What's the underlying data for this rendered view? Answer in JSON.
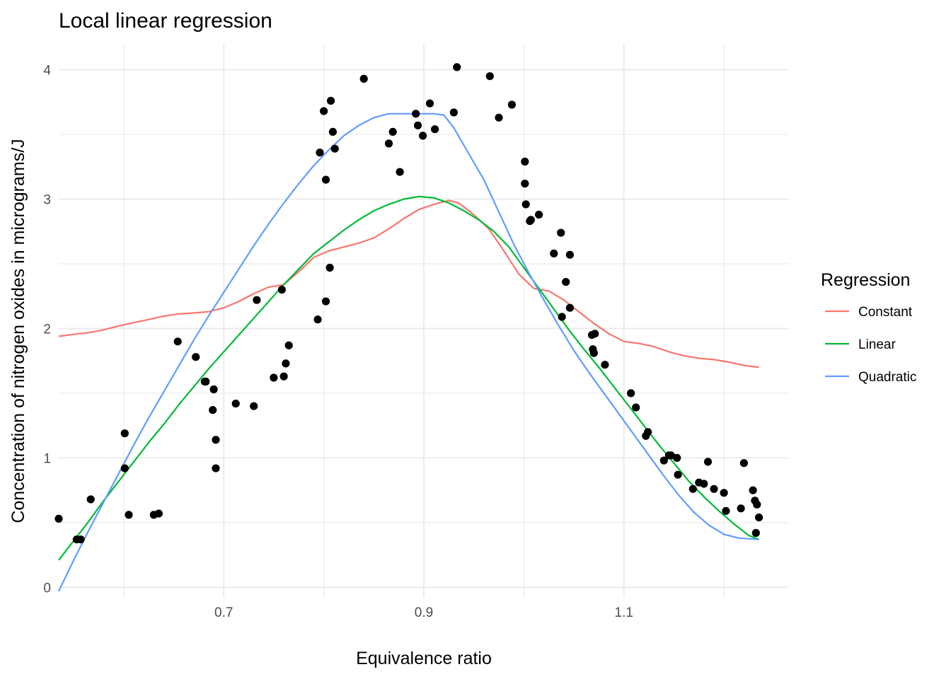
{
  "chart_data": {
    "type": "scatter",
    "title": "Local linear regression",
    "xlabel": "Equivalence ratio",
    "ylabel": "Concentration of nitrogen oxides in micrograms/J",
    "xlim": [
      0.535,
      1.265
    ],
    "ylim": [
      -0.08,
      4.2
    ],
    "x_ticks": [
      0.7,
      0.9,
      1.1
    ],
    "x_tick_labels": [
      "0.7",
      "0.9",
      "1.1"
    ],
    "x_minor_ticks": [
      0.6,
      0.8,
      1.0,
      1.2
    ],
    "y_ticks": [
      0,
      1,
      2,
      3,
      4
    ],
    "y_tick_labels": [
      "0",
      "1",
      "2",
      "3",
      "4"
    ],
    "y_minor_ticks": [
      0.5,
      1.5,
      2.5,
      3.5
    ],
    "grid": true,
    "legend": {
      "title": "Regression",
      "position": "right"
    },
    "points": [
      [
        0.535,
        0.53
      ],
      [
        0.553,
        0.37
      ],
      [
        0.557,
        0.37
      ],
      [
        0.567,
        0.68
      ],
      [
        0.601,
        1.19
      ],
      [
        0.601,
        0.92
      ],
      [
        0.605,
        0.56
      ],
      [
        0.63,
        0.56
      ],
      [
        0.635,
        0.57
      ],
      [
        0.654,
        1.9
      ],
      [
        0.672,
        1.78
      ],
      [
        0.681,
        1.59
      ],
      [
        0.682,
        1.59
      ],
      [
        0.689,
        1.37
      ],
      [
        0.69,
        1.53
      ],
      [
        0.692,
        1.14
      ],
      [
        0.692,
        0.92
      ],
      [
        0.712,
        1.42
      ],
      [
        0.73,
        1.4
      ],
      [
        0.733,
        2.22
      ],
      [
        0.75,
        1.62
      ],
      [
        0.758,
        2.3
      ],
      [
        0.76,
        1.63
      ],
      [
        0.762,
        1.73
      ],
      [
        0.765,
        1.87
      ],
      [
        0.794,
        2.07
      ],
      [
        0.796,
        3.36
      ],
      [
        0.8,
        3.68
      ],
      [
        0.802,
        2.21
      ],
      [
        0.802,
        3.15
      ],
      [
        0.806,
        2.47
      ],
      [
        0.807,
        3.76
      ],
      [
        0.809,
        3.52
      ],
      [
        0.811,
        3.39
      ],
      [
        0.84,
        3.93
      ],
      [
        0.865,
        3.43
      ],
      [
        0.869,
        3.52
      ],
      [
        0.876,
        3.21
      ],
      [
        0.892,
        3.66
      ],
      [
        0.894,
        3.57
      ],
      [
        0.899,
        3.49
      ],
      [
        0.906,
        3.74
      ],
      [
        0.911,
        3.54
      ],
      [
        0.93,
        3.67
      ],
      [
        0.933,
        4.02
      ],
      [
        0.966,
        3.95
      ],
      [
        0.975,
        3.63
      ],
      [
        0.988,
        3.73
      ],
      [
        1.001,
        3.29
      ],
      [
        1.001,
        3.12
      ],
      [
        1.002,
        2.96
      ],
      [
        1.006,
        2.83
      ],
      [
        1.007,
        2.84
      ],
      [
        1.015,
        2.88
      ],
      [
        1.03,
        2.58
      ],
      [
        1.037,
        2.74
      ],
      [
        1.038,
        2.09
      ],
      [
        1.042,
        2.36
      ],
      [
        1.046,
        2.57
      ],
      [
        1.046,
        2.16
      ],
      [
        1.068,
        1.95
      ],
      [
        1.069,
        1.84
      ],
      [
        1.07,
        1.81
      ],
      [
        1.071,
        1.96
      ],
      [
        1.081,
        1.72
      ],
      [
        1.107,
        1.5
      ],
      [
        1.112,
        1.39
      ],
      [
        1.122,
        1.17
      ],
      [
        1.124,
        1.2
      ],
      [
        1.14,
        0.98
      ],
      [
        1.145,
        1.02
      ],
      [
        1.147,
        1.02
      ],
      [
        1.153,
        1.0
      ],
      [
        1.154,
        0.87
      ],
      [
        1.169,
        0.76
      ],
      [
        1.175,
        0.81
      ],
      [
        1.18,
        0.8
      ],
      [
        1.184,
        0.97
      ],
      [
        1.19,
        0.76
      ],
      [
        1.2,
        0.73
      ],
      [
        1.202,
        0.59
      ],
      [
        1.217,
        0.61
      ],
      [
        1.22,
        0.96
      ],
      [
        1.229,
        0.75
      ],
      [
        1.231,
        0.67
      ],
      [
        1.232,
        0.42
      ],
      [
        1.233,
        0.64
      ],
      [
        1.235,
        0.54
      ]
    ],
    "series": [
      {
        "name": "Constant",
        "color": "#F8766D",
        "x": [
          0.535,
          0.55,
          0.565,
          0.58,
          0.595,
          0.61,
          0.625,
          0.64,
          0.655,
          0.67,
          0.685,
          0.7,
          0.715,
          0.73,
          0.745,
          0.76,
          0.775,
          0.79,
          0.805,
          0.82,
          0.835,
          0.85,
          0.865,
          0.88,
          0.895,
          0.91,
          0.925,
          0.935,
          0.95,
          0.965,
          0.98,
          0.995,
          1.01,
          1.025,
          1.04,
          1.055,
          1.07,
          1.085,
          1.1,
          1.115,
          1.13,
          1.145,
          1.16,
          1.175,
          1.19,
          1.205,
          1.22,
          1.235
        ],
        "y": [
          1.94,
          1.955,
          1.968,
          1.99,
          2.02,
          2.045,
          2.07,
          2.095,
          2.113,
          2.12,
          2.13,
          2.16,
          2.21,
          2.27,
          2.32,
          2.34,
          2.44,
          2.55,
          2.6,
          2.63,
          2.66,
          2.7,
          2.77,
          2.85,
          2.92,
          2.96,
          2.99,
          2.97,
          2.88,
          2.77,
          2.6,
          2.42,
          2.31,
          2.29,
          2.22,
          2.13,
          2.04,
          1.96,
          1.9,
          1.885,
          1.86,
          1.82,
          1.79,
          1.77,
          1.76,
          1.74,
          1.715,
          1.7
        ]
      },
      {
        "name": "Linear",
        "color": "#00BA38",
        "x": [
          0.535,
          0.55,
          0.565,
          0.58,
          0.595,
          0.61,
          0.625,
          0.64,
          0.655,
          0.67,
          0.685,
          0.7,
          0.715,
          0.73,
          0.745,
          0.76,
          0.775,
          0.79,
          0.805,
          0.82,
          0.835,
          0.85,
          0.865,
          0.88,
          0.895,
          0.91,
          0.925,
          0.94,
          0.955,
          0.97,
          0.985,
          1.0,
          1.015,
          1.03,
          1.045,
          1.06,
          1.075,
          1.09,
          1.105,
          1.12,
          1.135,
          1.15,
          1.165,
          1.18,
          1.195,
          1.21,
          1.225,
          1.235
        ],
        "y": [
          0.21,
          0.36,
          0.51,
          0.67,
          0.82,
          0.97,
          1.12,
          1.26,
          1.41,
          1.55,
          1.69,
          1.82,
          1.95,
          2.08,
          2.21,
          2.34,
          2.46,
          2.58,
          2.67,
          2.76,
          2.84,
          2.91,
          2.96,
          3.0,
          3.02,
          3.01,
          2.97,
          2.91,
          2.84,
          2.75,
          2.63,
          2.47,
          2.31,
          2.15,
          1.99,
          1.84,
          1.7,
          1.55,
          1.4,
          1.25,
          1.1,
          0.96,
          0.82,
          0.7,
          0.59,
          0.49,
          0.4,
          0.37
        ]
      },
      {
        "name": "Quadratic",
        "color": "#619CFF",
        "x": [
          0.535,
          0.55,
          0.565,
          0.58,
          0.595,
          0.61,
          0.625,
          0.64,
          0.655,
          0.67,
          0.685,
          0.7,
          0.715,
          0.73,
          0.745,
          0.76,
          0.775,
          0.79,
          0.805,
          0.82,
          0.835,
          0.85,
          0.865,
          0.88,
          0.895,
          0.91,
          0.92,
          0.93,
          0.945,
          0.96,
          0.975,
          0.99,
          1.005,
          1.02,
          1.035,
          1.05,
          1.065,
          1.08,
          1.095,
          1.11,
          1.125,
          1.14,
          1.155,
          1.17,
          1.185,
          1.2,
          1.215,
          1.235
        ],
        "y": [
          -0.03,
          0.21,
          0.44,
          0.66,
          0.88,
          1.1,
          1.31,
          1.51,
          1.71,
          1.91,
          2.1,
          2.28,
          2.46,
          2.64,
          2.81,
          2.97,
          3.12,
          3.26,
          3.38,
          3.49,
          3.57,
          3.63,
          3.66,
          3.66,
          3.66,
          3.66,
          3.65,
          3.55,
          3.35,
          3.15,
          2.9,
          2.65,
          2.43,
          2.22,
          2.02,
          1.83,
          1.66,
          1.5,
          1.34,
          1.18,
          1.02,
          0.86,
          0.71,
          0.58,
          0.48,
          0.41,
          0.38,
          0.37
        ]
      }
    ]
  }
}
